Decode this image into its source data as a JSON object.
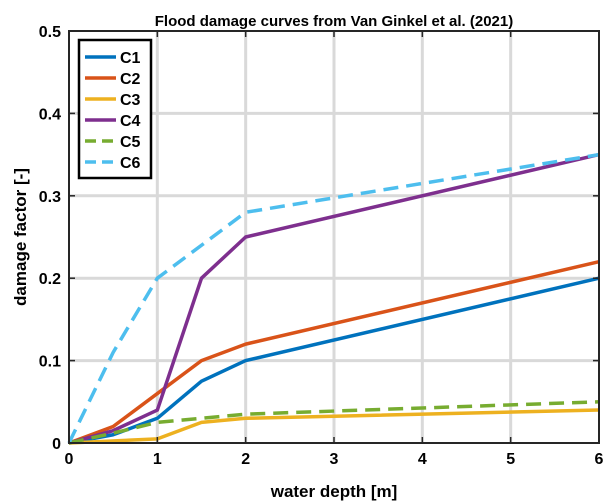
{
  "chart_data": {
    "type": "line",
    "title": "Flood damage curves from Van Ginkel et al. (2021)",
    "xlabel": "water depth [m]",
    "ylabel": "damage factor [-]",
    "xlim": [
      0,
      6
    ],
    "ylim": [
      0,
      0.5
    ],
    "xticks": [
      0,
      1,
      2,
      3,
      4,
      5,
      6
    ],
    "yticks": [
      0,
      0.1,
      0.2,
      0.3,
      0.4,
      0.5
    ],
    "xtick_labels": [
      "0",
      "1",
      "2",
      "3",
      "4",
      "5",
      "6"
    ],
    "ytick_labels": [
      "0",
      "0.1",
      "0.2",
      "0.3",
      "0.4",
      "0.5"
    ],
    "grid": true,
    "legend_position": "top-left",
    "series": [
      {
        "name": "C1",
        "color": "#0072BD",
        "dash": "solid",
        "x": [
          0,
          0.5,
          1,
          1.5,
          2,
          6
        ],
        "y": [
          0,
          0.01,
          0.03,
          0.075,
          0.1,
          0.2
        ]
      },
      {
        "name": "C2",
        "color": "#D95319",
        "dash": "solid",
        "x": [
          0,
          0.5,
          1,
          1.5,
          2,
          6
        ],
        "y": [
          0,
          0.02,
          0.06,
          0.1,
          0.12,
          0.22
        ]
      },
      {
        "name": "C3",
        "color": "#EDB120",
        "dash": "solid",
        "x": [
          0,
          1,
          1.5,
          2,
          6
        ],
        "y": [
          0,
          0.005,
          0.025,
          0.03,
          0.04
        ]
      },
      {
        "name": "C4",
        "color": "#7E2F8E",
        "dash": "solid",
        "x": [
          0,
          0.5,
          1,
          1.5,
          2,
          6
        ],
        "y": [
          0,
          0.015,
          0.04,
          0.2,
          0.25,
          0.35
        ]
      },
      {
        "name": "C5",
        "color": "#77AC30",
        "dash": "dashed",
        "x": [
          0,
          0.5,
          1,
          1.5,
          2,
          6
        ],
        "y": [
          0,
          0.012,
          0.025,
          0.03,
          0.035,
          0.05
        ]
      },
      {
        "name": "C6",
        "color": "#4DBEEE",
        "dash": "dashed",
        "x": [
          0,
          0.5,
          1,
          1.5,
          2,
          6
        ],
        "y": [
          0,
          0.11,
          0.2,
          0.24,
          0.28,
          0.35
        ]
      }
    ]
  }
}
